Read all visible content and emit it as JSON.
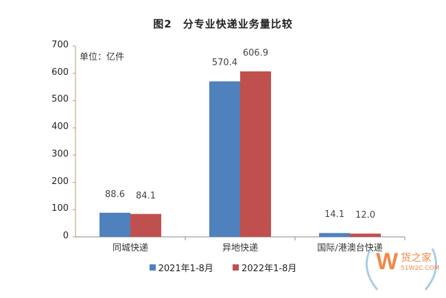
{
  "chart_data": {
    "type": "bar",
    "title": "图2　分专业快递业务量比较",
    "unit_label": "单位：亿件",
    "xlabel": "",
    "ylabel": "",
    "ylim": [
      0,
      700
    ],
    "yticks": [
      "0",
      "100",
      "200",
      "300",
      "400",
      "500",
      "600",
      "700"
    ],
    "categories": [
      "同城快递",
      "异地快递",
      "国际/港澳台快递"
    ],
    "series": [
      {
        "name": "2021年1-8月",
        "color": "#4f81bd",
        "values": [
          88.6,
          570.4,
          14.1
        ],
        "labels": [
          "88.6",
          "570.4",
          "14.1"
        ]
      },
      {
        "name": "2022年1-8月",
        "color": "#c0504d",
        "values": [
          84.1,
          606.9,
          12.0
        ],
        "labels": [
          "84.1",
          "606.9",
          "12.0"
        ]
      }
    ],
    "grid": false,
    "legend_position": "bottom"
  },
  "watermark": {
    "brand": "货之家",
    "site": "51W2C.COM"
  }
}
